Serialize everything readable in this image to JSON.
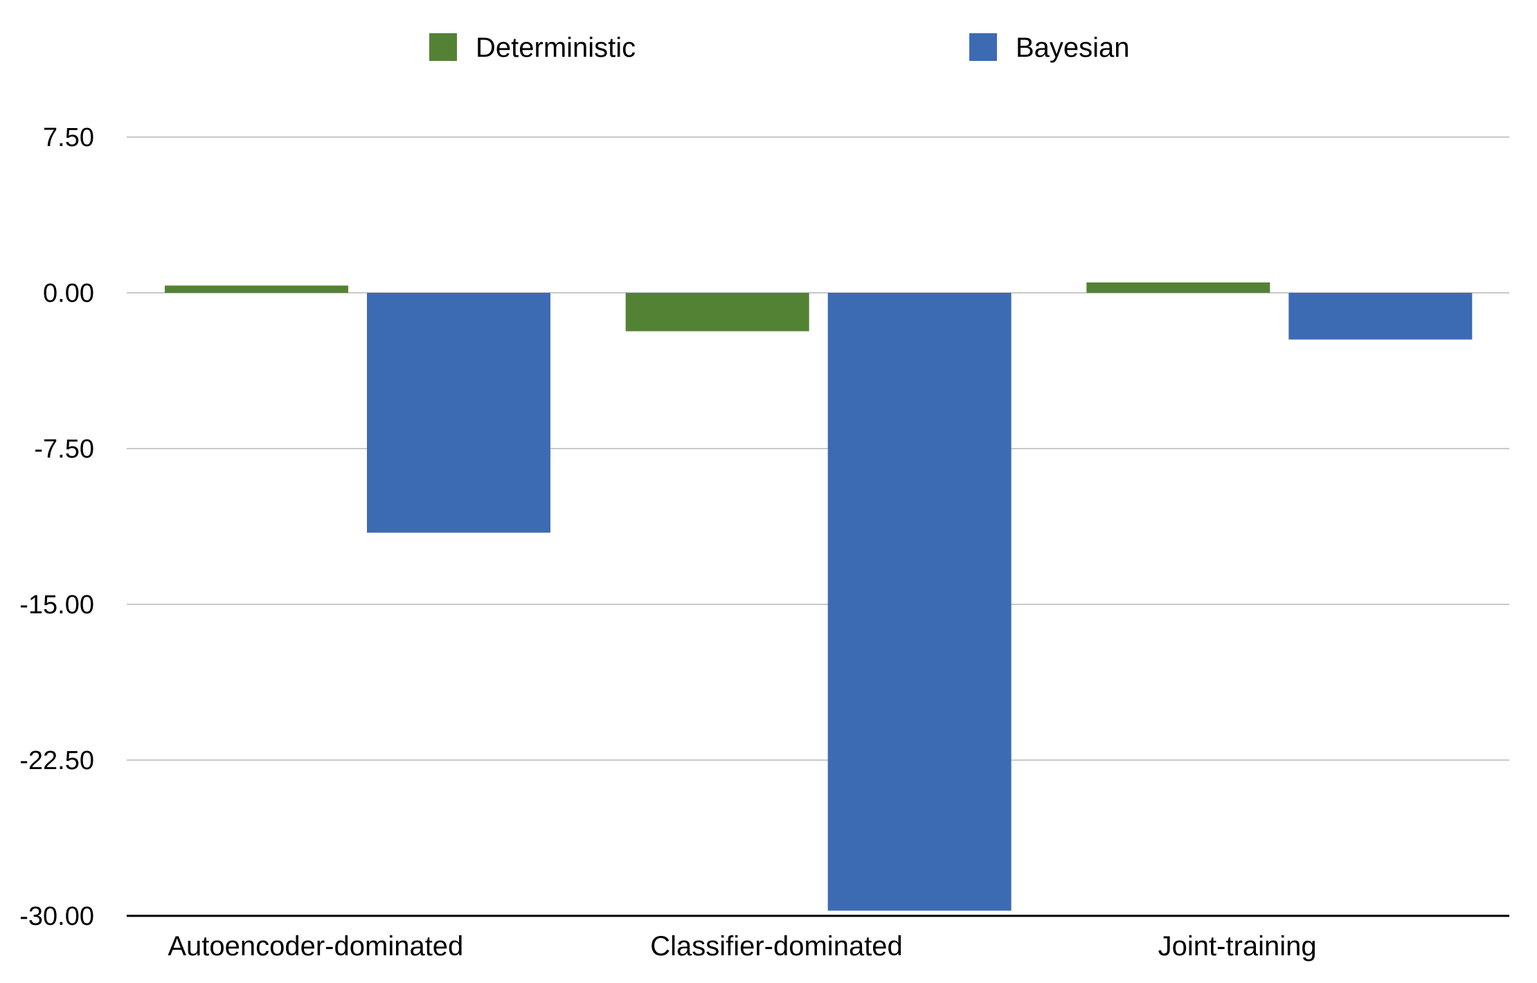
{
  "chart_data": {
    "type": "bar",
    "categories": [
      "Autoencoder-dominated",
      "Classifier-dominated",
      "Joint-training"
    ],
    "series": [
      {
        "name": "Deterministic",
        "color": "#548235",
        "values": [
          0.35,
          -1.85,
          0.5
        ]
      },
      {
        "name": "Bayesian",
        "color": "#3D6BB3",
        "values": [
          -11.55,
          -29.75,
          -2.25
        ]
      }
    ],
    "ylim": [
      -30,
      7.5
    ],
    "yticks": [
      "7.50",
      "0.00",
      "-7.50",
      "-15.00",
      "-22.50",
      "-30.00"
    ],
    "ytick_values": [
      7.5,
      0,
      -7.5,
      -15,
      -22.5,
      -30
    ],
    "grid": true,
    "legend_position": "top",
    "gridline_color": "#b7b7b7",
    "axis_color": "#000000"
  }
}
